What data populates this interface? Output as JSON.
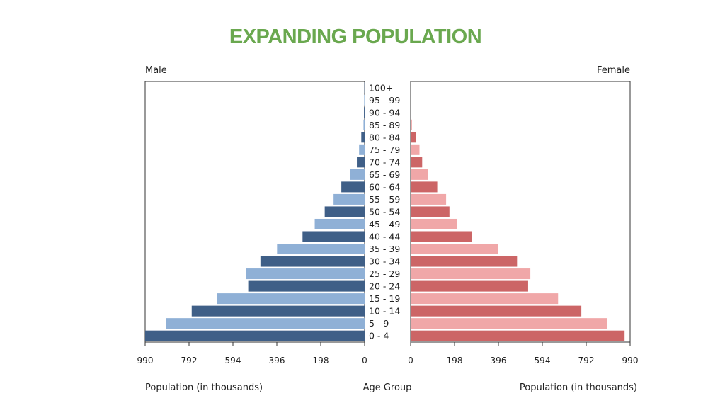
{
  "slide": {
    "title": "EXPANDING POPULATION"
  },
  "chart_data": {
    "type": "bar",
    "subtype": "population-pyramid",
    "title": "",
    "left_label": "Male",
    "right_label": "Female",
    "xlabel_left": "Population (in thousands)",
    "xlabel_center": "Age Group",
    "xlabel_right": "Population (in thousands)",
    "xlim": [
      0,
      990
    ],
    "ticks": [
      990,
      792,
      594,
      396,
      198,
      0
    ],
    "ticks_right": [
      0,
      198,
      396,
      594,
      792,
      990
    ],
    "categories": [
      "0 - 4",
      "5 - 9",
      "10 - 14",
      "15 - 19",
      "20 - 24",
      "25 - 29",
      "30 - 34",
      "35 - 39",
      "40 - 44",
      "45 - 49",
      "50 - 54",
      "55 - 59",
      "60 - 64",
      "65 - 69",
      "70 - 74",
      "75 - 79",
      "80 - 84",
      "85 - 89",
      "90 - 94",
      "95 - 99",
      "100+"
    ],
    "series": [
      {
        "name": "Male",
        "values": [
          990,
          895,
          780,
          665,
          525,
          535,
          470,
          395,
          280,
          225,
          180,
          140,
          105,
          65,
          35,
          25,
          15,
          5,
          3,
          2,
          1
        ]
      },
      {
        "name": "Female",
        "values": [
          965,
          885,
          770,
          665,
          530,
          540,
          480,
          395,
          275,
          210,
          175,
          160,
          120,
          78,
          52,
          40,
          25,
          6,
          3,
          2,
          1
        ]
      }
    ],
    "colors": {
      "male_dark": "#3f5f87",
      "male_light": "#8fb0d6",
      "female_dark": "#cc6566",
      "female_light": "#f0a7a8"
    },
    "grid": false
  }
}
